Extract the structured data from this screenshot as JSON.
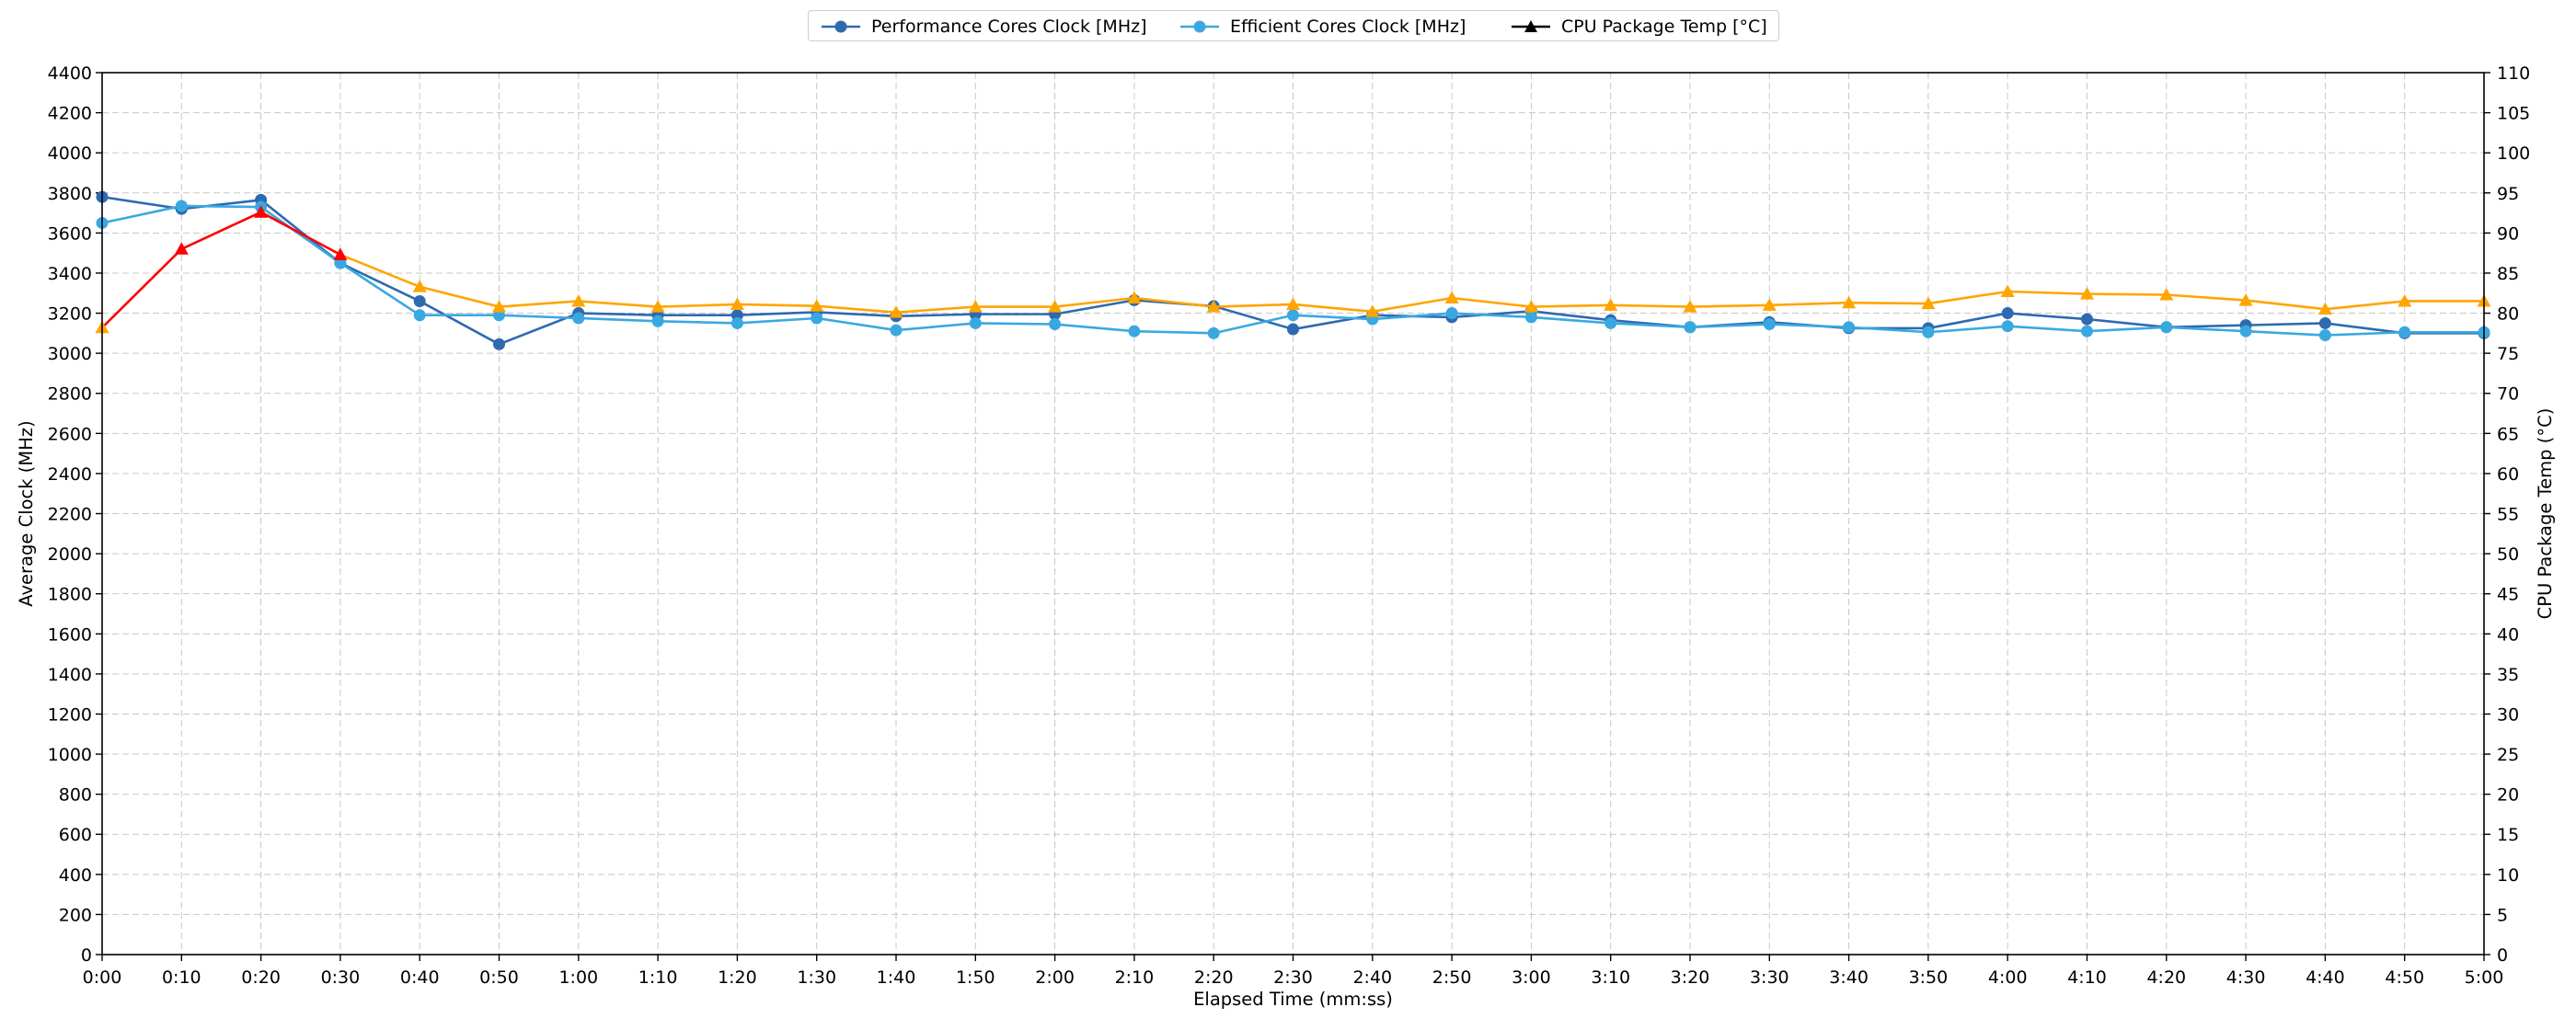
{
  "chart_data": {
    "type": "line",
    "title": "",
    "xlabel": "Elapsed Time (mm:ss)",
    "ylabel": "Average Clock (MHz)",
    "y2label": "CPU Package Temp (°C)",
    "grid": true,
    "legend_position": "top-center",
    "x": [
      "0:00",
      "0:10",
      "0:20",
      "0:30",
      "0:40",
      "0:50",
      "1:00",
      "1:10",
      "1:20",
      "1:30",
      "1:40",
      "1:50",
      "2:00",
      "2:10",
      "2:20",
      "2:30",
      "2:40",
      "2:50",
      "3:00",
      "3:10",
      "3:20",
      "3:30",
      "3:40",
      "3:50",
      "4:00",
      "4:10",
      "4:20",
      "4:30",
      "4:40",
      "4:50",
      "5:00"
    ],
    "ylim": [
      0,
      4400
    ],
    "y_ticks": [
      0,
      200,
      400,
      600,
      800,
      1000,
      1200,
      1400,
      1600,
      1800,
      2000,
      2200,
      2400,
      2600,
      2800,
      3000,
      3200,
      3400,
      3600,
      3800,
      4000,
      4200,
      4400
    ],
    "y2lim": [
      0,
      110
    ],
    "y2_ticks": [
      0,
      5,
      10,
      15,
      20,
      25,
      30,
      35,
      40,
      45,
      50,
      55,
      60,
      65,
      70,
      75,
      80,
      85,
      90,
      95,
      100,
      105,
      110
    ],
    "y2_tick_colors": {
      "green_max": 75,
      "orange_max": 85,
      "red_above": 85,
      "green": "#008000",
      "orange": "#ffa500",
      "red": "#ff0000"
    },
    "temp_line_colors": {
      "normal": "#ffa500",
      "hot": "#ff0000",
      "hot_threshold": 86
    },
    "series": [
      {
        "name": "Performance Cores Clock [MHz]",
        "axis": "left",
        "color": "#2e6ab0",
        "marker": "circle",
        "values": [
          3780,
          3720,
          3765,
          3450,
          3260,
          3045,
          3200,
          3190,
          3190,
          3205,
          3185,
          3195,
          3195,
          3265,
          3235,
          3120,
          3190,
          3180,
          3210,
          3165,
          3130,
          3155,
          3125,
          3125,
          3200,
          3170,
          3130,
          3140,
          3150,
          3100,
          3100
        ]
      },
      {
        "name": "Efficient Cores Clock [MHz]",
        "axis": "left",
        "color": "#3aa8e0",
        "marker": "circle",
        "values": [
          3650,
          3735,
          3730,
          3450,
          3190,
          3190,
          3175,
          3160,
          3150,
          3175,
          3115,
          3150,
          3145,
          3110,
          3100,
          3190,
          3170,
          3200,
          3180,
          3150,
          3130,
          3145,
          3130,
          3105,
          3135,
          3110,
          3130,
          3110,
          3090,
          3105,
          3105
        ]
      },
      {
        "name": "CPU Package Temp [°C]",
        "axis": "right",
        "color": "#000000",
        "marker": "triangle",
        "values": [
          78.2,
          88.0,
          92.6,
          87.3,
          83.3,
          80.8,
          81.5,
          80.8,
          81.1,
          80.9,
          80.1,
          80.8,
          80.8,
          81.9,
          80.8,
          81.1,
          80.2,
          81.9,
          80.8,
          81.0,
          80.8,
          81.0,
          81.3,
          81.2,
          82.7,
          82.4,
          82.3,
          81.6,
          80.5,
          81.5,
          81.5
        ]
      }
    ]
  }
}
